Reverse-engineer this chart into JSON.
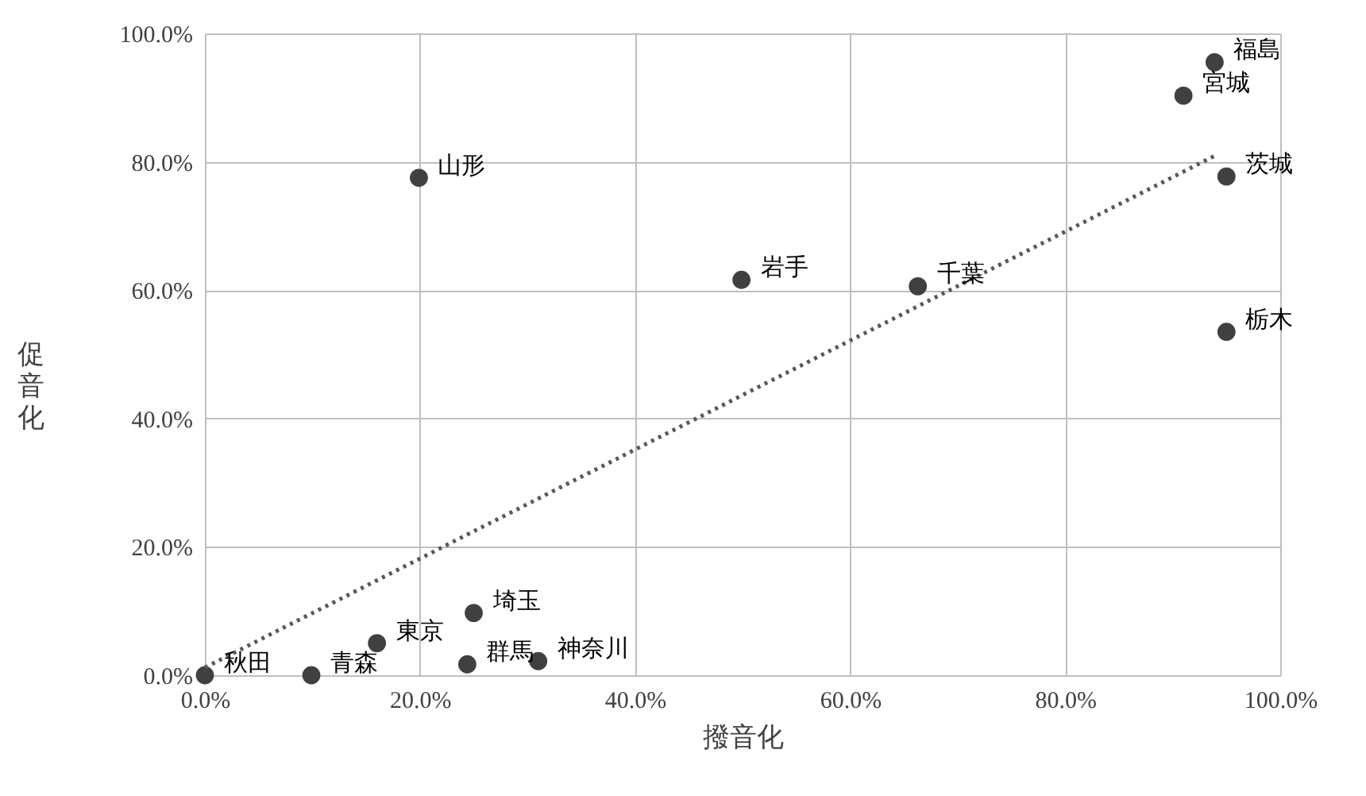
{
  "chart_data": {
    "type": "scatter",
    "xlabel": "撥音化",
    "ylabel": "促音化",
    "series": [
      {
        "color": "#404040",
        "marker": "circle",
        "x": [
          93.9,
          91.0,
          95.0,
          95.0,
          66.3,
          49.9,
          19.9,
          25.0,
          16.0,
          24.4,
          31.0,
          9.9,
          0
        ],
        "values": [
          95.5,
          90.3,
          77.7,
          53.5,
          60.6,
          61.6,
          77.5,
          9.7,
          5.0,
          1.7,
          2.2,
          0,
          0
        ]
      },
      {
        "type": "line",
        "color": "#595959",
        "line_style": "dotted",
        "x": [
          0,
          94
        ],
        "values": [
          1.2,
          81
        ]
      }
    ],
    "annotations": [
      {
        "text": "福島",
        "x": 93.9,
        "y": 95.5
      },
      {
        "text": "宮城",
        "x": 91.0,
        "y": 90.3
      },
      {
        "text": "茨城",
        "x": 95.0,
        "y": 77.7
      },
      {
        "text": "栃木",
        "x": 95.0,
        "y": 53.5
      },
      {
        "text": "千葉",
        "x": 66.3,
        "y": 60.6
      },
      {
        "text": "岩手",
        "x": 49.9,
        "y": 61.6
      },
      {
        "text": "山形",
        "x": 19.9,
        "y": 77.5
      },
      {
        "text": "埼玉",
        "x": 25.0,
        "y": 9.7
      },
      {
        "text": "東京",
        "x": 16.0,
        "y": 5.0
      },
      {
        "text": "群馬",
        "x": 24.4,
        "y": 1.7
      },
      {
        "text": "神奈川",
        "x": 31.0,
        "y": 2.2
      },
      {
        "text": "青森",
        "x": 9.9,
        "y": 0
      },
      {
        "text": "秋田",
        "x": 0,
        "y": 0
      }
    ],
    "xlim": [
      0,
      100
    ],
    "ylim": [
      0,
      100
    ],
    "xticks": [
      {
        "value": 0,
        "label": "0.0%"
      },
      {
        "value": 20,
        "label": "20.0%"
      },
      {
        "value": 40,
        "label": "40.0%"
      },
      {
        "value": 60,
        "label": "60.0%"
      },
      {
        "value": 80,
        "label": "80.0%"
      },
      {
        "value": 100,
        "label": "100.0%"
      }
    ],
    "yticks": [
      {
        "value": 0,
        "label": "0.0%"
      },
      {
        "value": 20,
        "label": "20.0%"
      },
      {
        "value": 40,
        "label": "40.0%"
      },
      {
        "value": 60,
        "label": "60.0%"
      },
      {
        "value": 80,
        "label": "80.0%"
      },
      {
        "value": 100,
        "label": "100.0%"
      }
    ],
    "grid": true
  }
}
